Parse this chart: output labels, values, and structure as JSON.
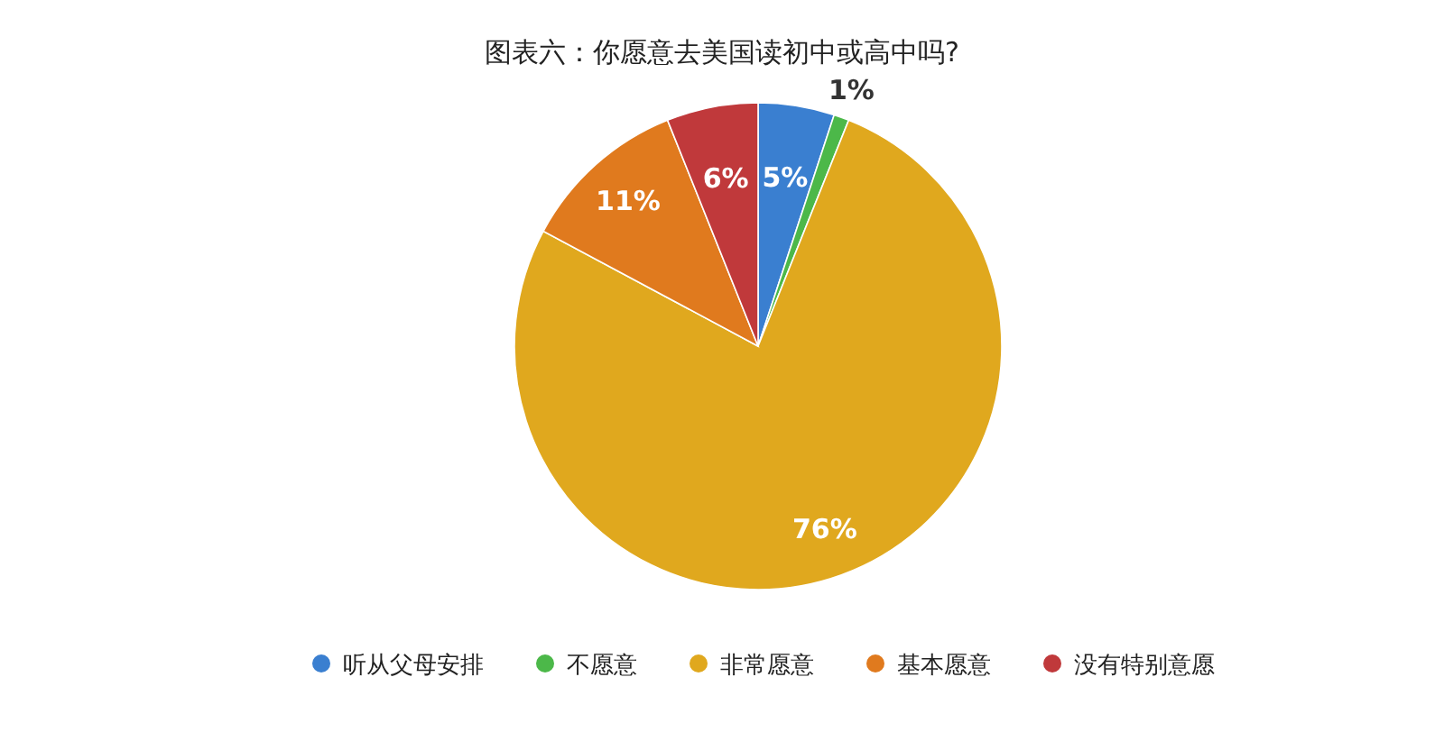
{
  "chart_data": {
    "type": "pie",
    "title": "图表六：你愿意去美国读初中或高中吗?",
    "categories": [
      "听从父母安排",
      "不愿意",
      "非常愿意",
      "基本愿意",
      "没有特别意愿"
    ],
    "values": [
      5,
      1,
      76,
      11,
      6
    ],
    "colors": [
      "#3a7fd0",
      "#4cb849",
      "#e0a81e",
      "#e07a1e",
      "#c0393b"
    ],
    "value_labels": [
      "5%",
      "1%",
      "76%",
      "11%",
      "6%"
    ],
    "legend": "bottom"
  }
}
